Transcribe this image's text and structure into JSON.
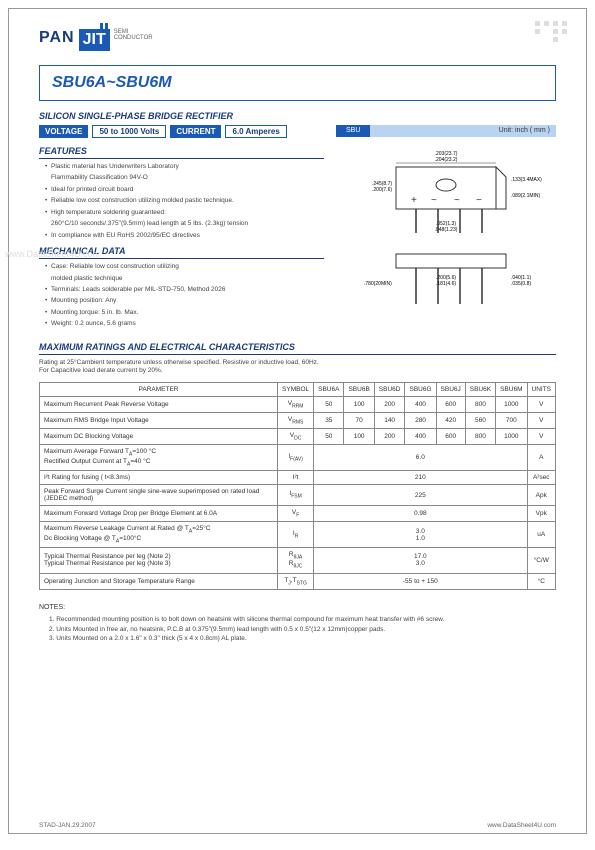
{
  "logo": {
    "brand1": "PAN",
    "brand2": "JIT",
    "sub1": "SEMI",
    "sub2": "CONDUCTOR"
  },
  "title": "SBU6A~SBU6M",
  "subtitle": "SILICON SINGLE-PHASE BRIDGE RECTIFIER",
  "specs": {
    "voltage_label": "VOLTAGE",
    "voltage_value": "50 to 1000 Volts",
    "current_label": "CURRENT",
    "current_value": "6.0 Amperes"
  },
  "package": {
    "code": "SBU",
    "unit": "Unit: inch ( mm )",
    "dims_top": [
      ".203(23.7)",
      ".204(23.2)"
    ],
    "dims_left_h": [
      ".245(8.7)",
      ".200(7.6)"
    ],
    "dims_right": [
      ".133(3.4MAX)",
      ".089(2.1MIN)"
    ],
    "dims_bot_a": [
      ".052(1.3)",
      ".048(1.23)"
    ],
    "dims_lead1": [
      ".780(20MIN)"
    ],
    "dims_lead2": [
      ".200(5.6)",
      ".181(4.6)"
    ],
    "dims_lead3": [
      ".040(1.1)",
      ".035(0.8)"
    ]
  },
  "features_head": "FEATURES",
  "features": [
    "Plastic material has Underwriters Laboratory",
    "Flammability Classification 94V-O",
    "Ideal for printed circuit board",
    "Reliable low cost construction utilizing molded pastic technique.",
    "High temperature soldering guaranteed:",
    "260°C/10 seconds/.375\"(9.5mm) lead length at 5 lbs. (2.3kg) tension",
    "In compliance with EU RoHS 2002/95/EC directives"
  ],
  "mech_head": "MECHANICAL DATA",
  "mech": [
    "Case: Reliable low cost construction utilizing",
    "molded plastic technique",
    "Terminals: Leads solderable per MIL-STD-750, Method 2026",
    "Mounting position: Any",
    "Mounting torque: 5 in. lb. Max.",
    "Weight: 0.2 ounce, 5.6 grams"
  ],
  "max_head": "MAXIMUM RATINGS AND ELECTRICAL CHARACTERISTICS",
  "max_note": "Rating at 25°Cambient temperature unless otherwise specified. Resistive or inductive load, 60Hz.\nFor Capacitive load derate current by 20%.",
  "table": {
    "headers": [
      "PARAMETER",
      "SYMBOL",
      "SBU6A",
      "SBU6B",
      "SBU6D",
      "SBU6G",
      "SBU6J",
      "SBU6K",
      "SBU6M",
      "UNITS"
    ],
    "rows": [
      {
        "param": "Maximum Recurrent Peak Reverse Voltage",
        "symbol": "V<sub>RRM</sub>",
        "vals": [
          "50",
          "100",
          "200",
          "400",
          "600",
          "800",
          "1000"
        ],
        "unit": "V"
      },
      {
        "param": "Maximum RMS Bridge Input Voltage",
        "symbol": "V<sub>RMS</sub>",
        "vals": [
          "35",
          "70",
          "140",
          "280",
          "420",
          "560",
          "700"
        ],
        "unit": "V"
      },
      {
        "param": "Maximum DC Blocking Voltage",
        "symbol": "V<sub>DC</sub>",
        "vals": [
          "50",
          "100",
          "200",
          "400",
          "600",
          "800",
          "1000"
        ],
        "unit": "V"
      },
      {
        "param": "Maximum Average Forward T<sub>A</sub>=100 °C\nRectified Output Current at T<sub>A</sub>=40 °C",
        "symbol": "I<sub>F(AV)</sub>",
        "span": "6.0",
        "unit": "A"
      },
      {
        "param": "I²t Rating for fusing ( t<8.3ms)",
        "symbol": "I²t",
        "span": "210",
        "unit": "A²sec"
      },
      {
        "param": "Peak Forward Surge Current single sine-wave superimposed on rated load (JEDEC method)",
        "symbol": "I<sub>FSM</sub>",
        "span": "225",
        "unit": "Apk"
      },
      {
        "param": "Maximum Forward Voltage Drop per Bridge Element at 6.0A",
        "symbol": "V<sub>F</sub>",
        "span": "0.98",
        "unit": "Vpk"
      },
      {
        "param": "Maximum Reverse Leakage Current at Rated @ T<sub>A</sub>=25°C\nDc Blocking Voltage @ T<sub>A</sub>=100°C",
        "symbol": "I<sub>R</sub>",
        "span": "3.0\n1.0",
        "unit": "uA"
      },
      {
        "param": "Typical Thermal Resistance per leg (Note 2)\nTypical Thermal Resistance per leg (Note 3)",
        "symbol": "R<sub>θJA</sub>\nR<sub>θJC</sub>",
        "span": "17.0\n3.0",
        "unit": "°C/W"
      },
      {
        "param": "Operating Junction and Storage Temperature Range",
        "symbol": "T<sub>J</sub>,T<sub>STG</sub>",
        "span": "-55 to + 150",
        "unit": "°C"
      }
    ]
  },
  "notes_head": "NOTES:",
  "notes": [
    "1. Recommended mounting position is to bolt down on heatsink with silicone thermal compound for maximum heat transfer with #6 screw.",
    "2. Units Mounted in free air, no heatsink, P.C.B at 0.375\"(9.5mm) lead length with 0.5 x 0.5\"(12 x 12mm)copper pads.",
    "3. Units Mounted on a 2.0 x 1.6\" x 0.3\" thick (5 x 4 x 0.8cm) AL plate."
  ],
  "footer": {
    "left": "STAD-JAN.29.2007",
    "right": "www.DataSheet4U.com"
  },
  "watermark": "www.DataSheet4U.com"
}
